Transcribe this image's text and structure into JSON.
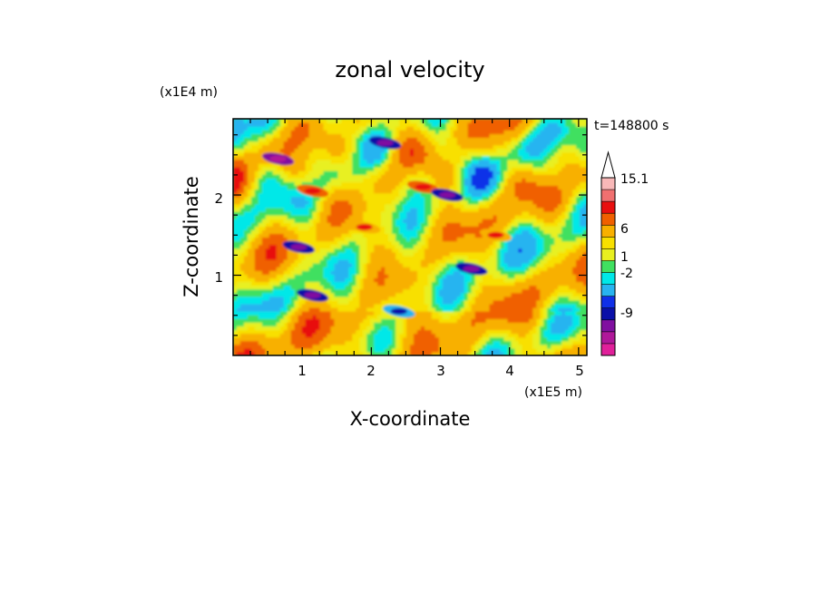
{
  "chart_data": {
    "type": "heatmap",
    "title": "zonal velocity",
    "xlabel": "X-coordinate",
    "ylabel": "Z-coordinate",
    "x_unit": "(x1E5 m)",
    "y_unit": "(x1E4 m)",
    "time_label": "t=148800 s",
    "xlim": [
      0,
      5.12
    ],
    "ylim": [
      0,
      2.95
    ],
    "x_ticks": [
      "1",
      "2",
      "3",
      "4",
      "5"
    ],
    "y_ticks": [
      "1",
      "2"
    ],
    "colorbar": {
      "levels": [
        -15,
        -12,
        -9,
        -6,
        -4,
        -2,
        -1,
        0,
        1,
        2,
        4,
        6,
        9,
        12,
        15.1
      ],
      "labels": [
        "15.1",
        "6",
        "1",
        "-2",
        "-9"
      ],
      "colors": [
        "#e0209a",
        "#b0189a",
        "#8010a0",
        "#0a10a8",
        "#1030e8",
        "#28b4f0",
        "#00e8e8",
        "#40e060",
        "#e8f020",
        "#f8e000",
        "#f8b000",
        "#f06000",
        "#e81010",
        "#f07070",
        "#f8b8b8",
        "#ffffff"
      ],
      "extend": "max"
    },
    "features": [
      {
        "x": 0.65,
        "z": 2.45,
        "value": -9
      },
      {
        "x": 1.15,
        "z": 2.05,
        "value": 6
      },
      {
        "x": 0.95,
        "z": 1.35,
        "value": -6
      },
      {
        "x": 1.15,
        "z": 0.75,
        "value": -6
      },
      {
        "x": 2.2,
        "z": 2.65,
        "value": -6
      },
      {
        "x": 2.75,
        "z": 2.1,
        "value": 6
      },
      {
        "x": 3.1,
        "z": 2.0,
        "value": -6
      },
      {
        "x": 3.45,
        "z": 1.08,
        "value": -6
      },
      {
        "x": 2.4,
        "z": 0.55,
        "value": -2
      },
      {
        "x": 1.9,
        "z": 1.6,
        "value": 4
      },
      {
        "x": 3.8,
        "z": 1.5,
        "value": 4
      }
    ]
  }
}
